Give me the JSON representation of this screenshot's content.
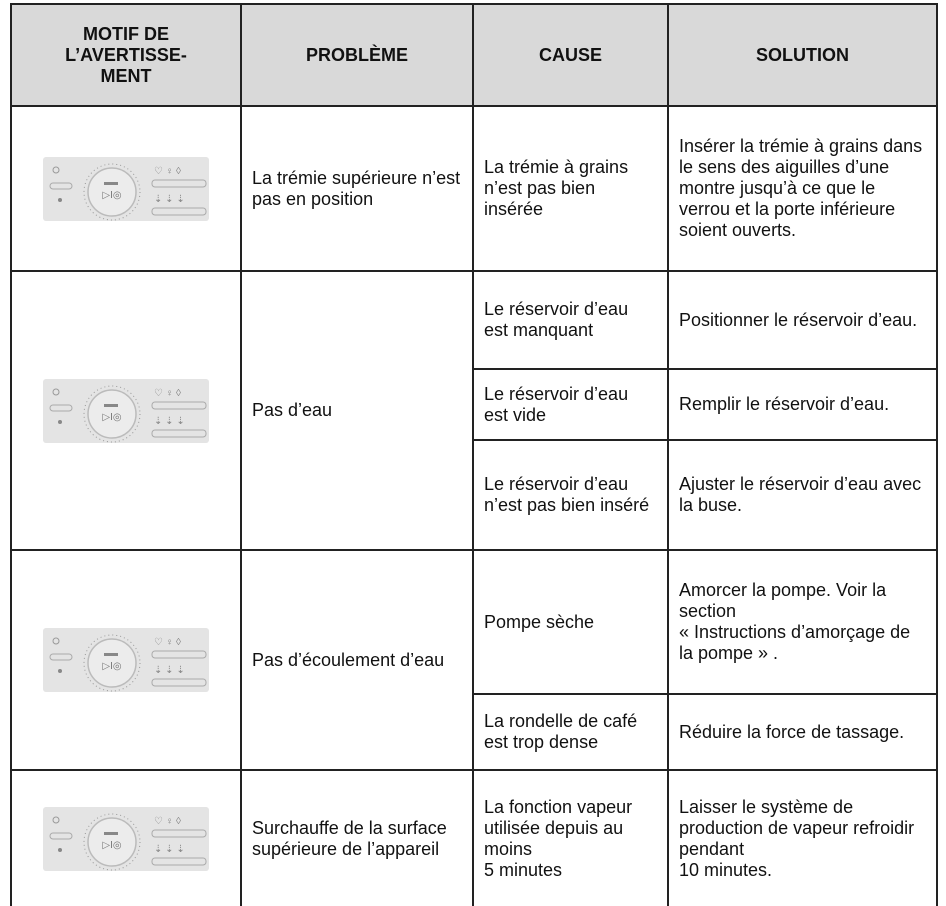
{
  "table": {
    "header": [
      "MOTIF DE\nL’AVERTISSE-\nMENT",
      "PROBLÈME",
      "CAUSE",
      "SOLUTION"
    ],
    "rows": [
      {
        "problem": "La trémie supérieure n’est pas en position",
        "items": [
          {
            "cause": "La trémie à grains n’est pas bien insérée",
            "solution": "Insérer la trémie à grains dans le sens des aiguilles d’une montre jusqu’à ce que le verrou et la porte inférieure soient ouverts."
          }
        ]
      },
      {
        "problem": "Pas d’eau",
        "items": [
          {
            "cause": "Le réservoir d’eau est manquant",
            "solution": "Positionner le réservoir d’eau."
          },
          {
            "cause": "Le réservoir d’eau est vide",
            "solution": "Remplir le réservoir d’eau."
          },
          {
            "cause": "Le réservoir d’eau n’est pas bien inséré",
            "solution": "Ajuster le réservoir d’eau avec la buse."
          }
        ]
      },
      {
        "problem": "Pas d’écoulement d’eau",
        "items": [
          {
            "cause": "Pompe sèche",
            "solution": "Amorcer la pompe. Voir la section\n« Instructions d’amorçage de la pompe » ."
          },
          {
            "cause": "La rondelle de café est trop dense",
            "solution": "Réduire la force de tassage."
          }
        ]
      },
      {
        "problem": "Surchauffe de la surface supérieure de l’appareil",
        "items": [
          {
            "cause": "La fonction vapeur utilisée depuis au\nmoins\n5 minutes",
            "solution": "Laisser le système de production de vapeur refroidir pendant\n10 minutes."
          }
        ]
      }
    ]
  }
}
